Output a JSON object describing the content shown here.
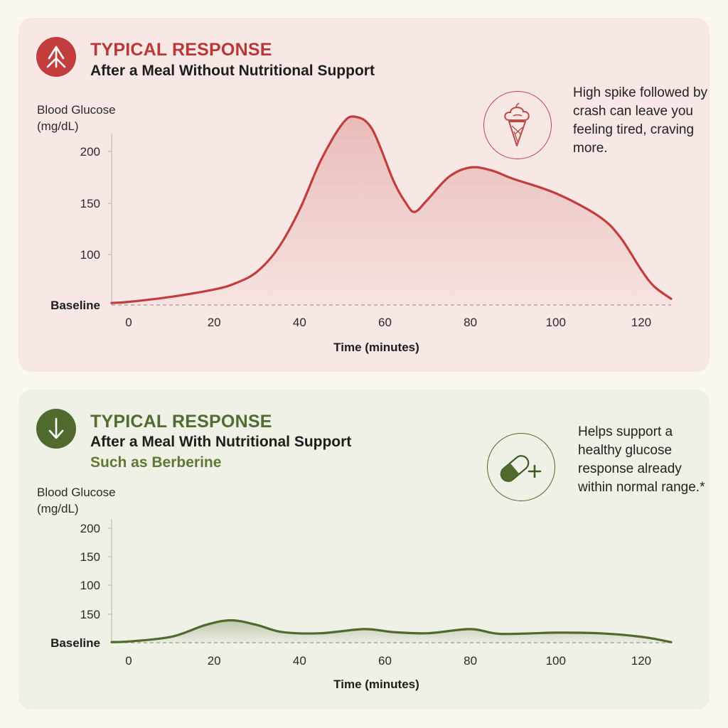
{
  "panels": {
    "without_support": {
      "kicker": "TYPICAL RESPONSE",
      "subtitle": "After a Meal Without Nutritional Support",
      "note": "High spike followed by crash can leave you feeling tired, craving more.",
      "icon": "ice-cream-icon",
      "accent": "#c23d3d"
    },
    "with_support": {
      "kicker": "TYPICAL RESPONSE",
      "subtitle": "After a Meal With Nutritional Support",
      "subtitle2": "Such as Berberine",
      "note": "Helps support a healthy glucose response already within normal range.*",
      "icon": "capsule-plus-icon",
      "accent": "#4f6a2c"
    }
  },
  "chart_data": [
    {
      "type": "area",
      "ylabel": "Blood Glucose (mg/dL)",
      "xlabel": "Time (minutes)",
      "x_ticks": [
        "0",
        "20",
        "40",
        "60",
        "80",
        "100",
        "120"
      ],
      "y_ticks": [
        "Baseline",
        "100",
        "150",
        "200"
      ],
      "baseline_label": "Baseline",
      "xlim": [
        -4,
        127
      ],
      "ylim": [
        50,
        250
      ],
      "baseline_value": 50,
      "x": [
        -4,
        0,
        10,
        20,
        25,
        30,
        35,
        40,
        45,
        50,
        53,
        57,
        62,
        65,
        67,
        70,
        75,
        80,
        85,
        90,
        100,
        110,
        115,
        120,
        123,
        127
      ],
      "y": [
        52,
        53,
        58,
        65,
        71,
        82,
        105,
        142,
        190,
        225,
        232,
        220,
        170,
        148,
        140,
        152,
        174,
        183,
        180,
        172,
        158,
        136,
        116,
        84,
        68,
        56
      ],
      "color": "#c23d3d",
      "grid": false
    },
    {
      "type": "area",
      "ylabel": "Blood Glucose (mg/dL)",
      "xlabel": "Time (minutes)",
      "x_ticks": [
        "0",
        "20",
        "40",
        "60",
        "80",
        "100",
        "120"
      ],
      "y_ticks": [
        "Baseline",
        "150",
        "100",
        "150",
        "200"
      ],
      "baseline_label": "Baseline",
      "xlim": [
        -4,
        127
      ],
      "ylim": [
        0,
        200
      ],
      "baseline_value": 0,
      "x": [
        -4,
        0,
        10,
        18,
        24,
        30,
        36,
        45,
        55,
        62,
        70,
        80,
        87,
        100,
        110,
        120,
        127
      ],
      "y": [
        1,
        2,
        10,
        30,
        38,
        30,
        18,
        16,
        23,
        18,
        16,
        23,
        15,
        17,
        16,
        10,
        1
      ],
      "color": "#4f6a2c",
      "grid": false
    }
  ]
}
